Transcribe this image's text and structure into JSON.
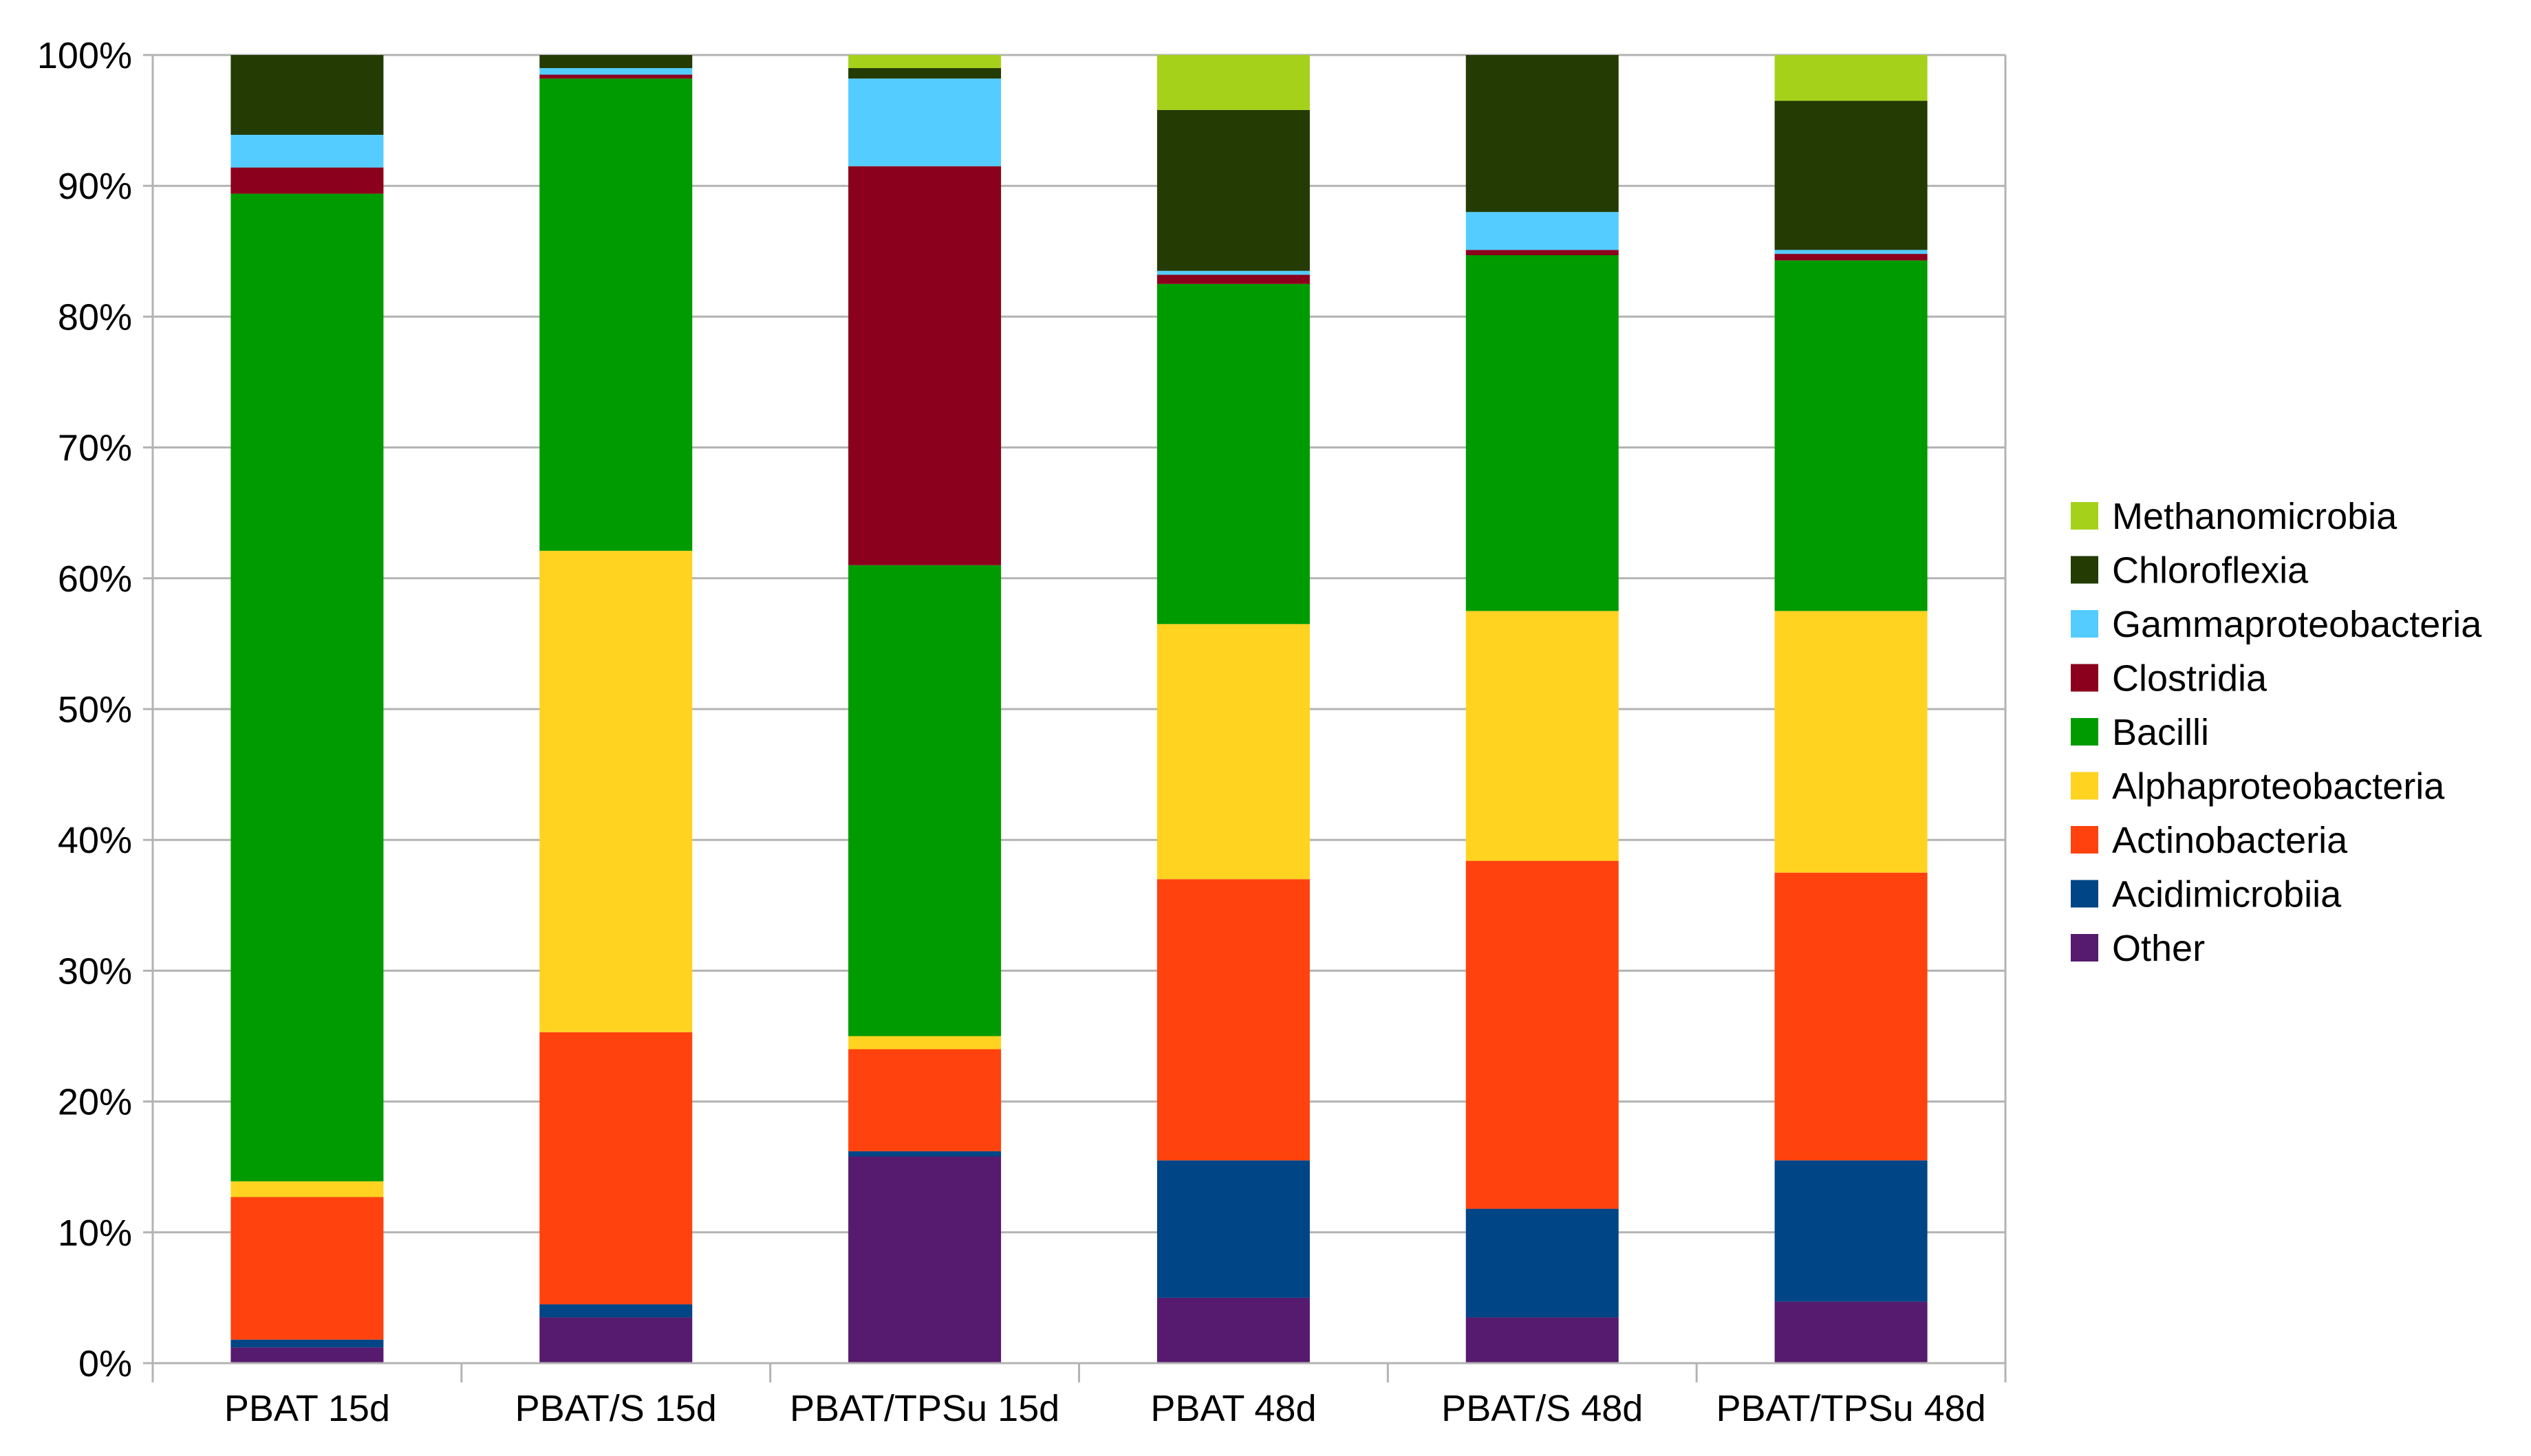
{
  "chart_data": {
    "type": "bar",
    "stacked": true,
    "percent": true,
    "categories": [
      "PBAT 15d",
      "PBAT/S 15d",
      "PBAT/TPSu 15d",
      "PBAT 48d",
      "PBAT/S 48d",
      "PBAT/TPSu 48d"
    ],
    "ylim": [
      0,
      100
    ],
    "yticks": [
      "0%",
      "10%",
      "20%",
      "30%",
      "40%",
      "50%",
      "60%",
      "70%",
      "80%",
      "90%",
      "100%"
    ],
    "grid": true,
    "legend_position": "right",
    "series": [
      {
        "name": "Other",
        "color": "#561A6E",
        "values": [
          1.2,
          3.5,
          15.8,
          5.0,
          3.5,
          4.7
        ]
      },
      {
        "name": "Acidimicrobiia",
        "color": "#004586",
        "values": [
          0.6,
          1.0,
          0.4,
          10.5,
          8.3,
          10.8
        ]
      },
      {
        "name": "Actinobacteria",
        "color": "#FF420E",
        "values": [
          10.9,
          20.8,
          7.8,
          21.5,
          26.6,
          22.0
        ]
      },
      {
        "name": "Alphaproteobacteria",
        "color": "#FFD320",
        "values": [
          1.2,
          36.8,
          1.0,
          19.5,
          19.1,
          20.0
        ]
      },
      {
        "name": "Bacilli",
        "color": "#009B00",
        "values": [
          75.5,
          36.1,
          36.0,
          26.0,
          27.2,
          26.8
        ]
      },
      {
        "name": "Clostridia",
        "color": "#8B001C",
        "values": [
          2.0,
          0.3,
          30.5,
          0.7,
          0.4,
          0.5
        ]
      },
      {
        "name": "Gammaproteobacteria",
        "color": "#55CCFF",
        "values": [
          2.5,
          0.5,
          6.7,
          0.3,
          2.9,
          0.3
        ]
      },
      {
        "name": "Chloroflexia",
        "color": "#243B04",
        "values": [
          6.1,
          1.0,
          0.8,
          12.3,
          12.0,
          11.4
        ]
      },
      {
        "name": "Methanomicrobia",
        "color": "#A6D11B",
        "values": [
          0.0,
          0.0,
          1.0,
          4.2,
          0.0,
          3.5
        ]
      }
    ],
    "axis_color": "#B3B3B3",
    "grid_color": "#B3B3B3"
  }
}
